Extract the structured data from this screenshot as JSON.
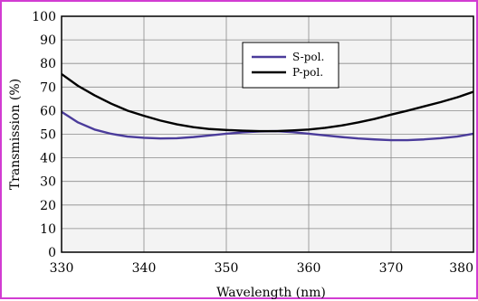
{
  "frame_color": "#d23cd2",
  "chart_data": {
    "type": "line",
    "title": "",
    "xlabel": "Wavelength (nm)",
    "ylabel": "Transmission (%)",
    "xlim": [
      330,
      380
    ],
    "ylim": [
      0,
      100
    ],
    "xticks": [
      "330",
      "340",
      "350",
      "360",
      "370",
      "380"
    ],
    "yticks": [
      "0",
      "10",
      "20",
      "30",
      "40",
      "50",
      "60",
      "70",
      "80",
      "90",
      "100"
    ],
    "grid": true,
    "plot_background": "#f3f3f3",
    "legend_position": "top-center",
    "series": [
      {
        "name": "S-pol.",
        "color": "#4b3c9b",
        "x": [
          330,
          332,
          334,
          336,
          338,
          340,
          342,
          344,
          346,
          348,
          350,
          352,
          354,
          356,
          358,
          360,
          362,
          364,
          366,
          368,
          370,
          372,
          374,
          376,
          378,
          380
        ],
        "y": [
          59.5,
          55.0,
          52.0,
          50.2,
          49.0,
          48.5,
          48.2,
          48.3,
          48.8,
          49.5,
          50.2,
          50.8,
          51.2,
          51.3,
          50.9,
          50.2,
          49.5,
          48.8,
          48.2,
          47.8,
          47.5,
          47.5,
          47.8,
          48.3,
          49.0,
          50.2
        ]
      },
      {
        "name": "P-pol.",
        "color": "#000000",
        "x": [
          330,
          332,
          334,
          336,
          338,
          340,
          342,
          344,
          346,
          348,
          350,
          352,
          354,
          356,
          358,
          360,
          362,
          364,
          366,
          368,
          370,
          372,
          374,
          376,
          378,
          380
        ],
        "y": [
          75.5,
          70.5,
          66.5,
          63.0,
          60.0,
          57.8,
          55.8,
          54.2,
          53.0,
          52.2,
          51.8,
          51.5,
          51.3,
          51.3,
          51.6,
          52.0,
          52.7,
          53.7,
          55.0,
          56.5,
          58.3,
          60.0,
          61.8,
          63.6,
          65.6,
          68.0
        ]
      }
    ]
  }
}
